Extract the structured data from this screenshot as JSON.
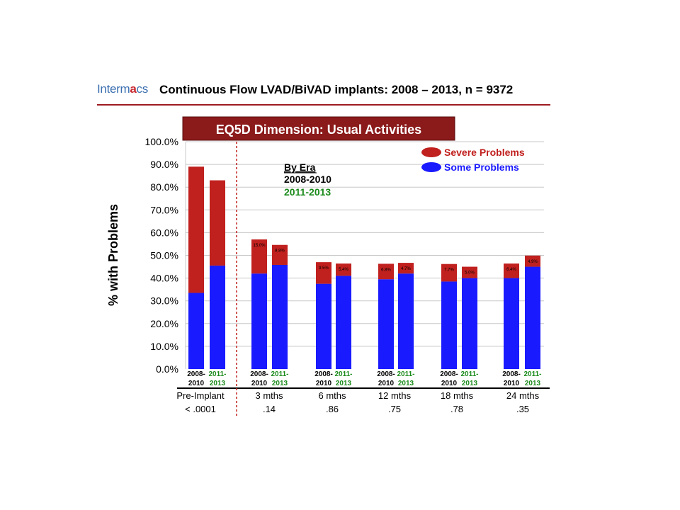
{
  "header": {
    "logo_text": "Intermacs",
    "title": "Continuous Flow LVAD/BiVAD implants:  2008 – 2013, n = 9372"
  },
  "colors": {
    "severe": "#c0201e",
    "some": "#1a1aff",
    "era2_label": "#1a8a1a",
    "banner_bg": "#8b1a1a",
    "accent_rule": "#9e1b20"
  },
  "chart_data": {
    "type": "bar",
    "stacked": true,
    "title": "EQ5D Dimension: Usual Activities",
    "ylabel": "% with Problems",
    "ylim": [
      0,
      100
    ],
    "yticks": [
      "0.0%",
      "10.0%",
      "20.0%",
      "30.0%",
      "40.0%",
      "50.0%",
      "60.0%",
      "70.0%",
      "80.0%",
      "90.0%",
      "100.0%"
    ],
    "legend_position": "top-right",
    "legend": [
      {
        "name": "Severe Problems",
        "color": "#c0201e"
      },
      {
        "name": "Some Problems",
        "color": "#1a1aff"
      }
    ],
    "era_note": {
      "heading": "By Era",
      "era1": "2008-2010",
      "era2": "2011-2013"
    },
    "groups": [
      {
        "label": "Pre-Implant",
        "p_value": "< .0001",
        "bars": [
          {
            "era_line1": "2008-",
            "era_line2": "2010",
            "era": 1,
            "some": 33.5,
            "severe": 55.5,
            "severe_label": ""
          },
          {
            "era_line1": "2011-",
            "era_line2": "2013",
            "era": 2,
            "some": 45.5,
            "severe": 37.5,
            "severe_label": ""
          }
        ]
      },
      {
        "label": "3 mths",
        "p_value": ".14",
        "bars": [
          {
            "era_line1": "2008-",
            "era_line2": "2010",
            "era": 1,
            "some": 42.0,
            "severe": 15.0,
            "severe_label": "15.0%"
          },
          {
            "era_line1": "2011-",
            "era_line2": "2013",
            "era": 2,
            "some": 45.8,
            "severe": 8.8,
            "severe_label": "8.8%"
          }
        ]
      },
      {
        "label": "6 mths",
        "p_value": ".86",
        "bars": [
          {
            "era_line1": "2008-",
            "era_line2": "2010",
            "era": 1,
            "some": 37.5,
            "severe": 9.5,
            "severe_label": "9.5%"
          },
          {
            "era_line1": "2011-",
            "era_line2": "2013",
            "era": 2,
            "some": 41.0,
            "severe": 5.4,
            "severe_label": "5.4%"
          }
        ]
      },
      {
        "label": "12 mths",
        "p_value": ".75",
        "bars": [
          {
            "era_line1": "2008-",
            "era_line2": "2010",
            "era": 1,
            "some": 39.5,
            "severe": 6.8,
            "severe_label": "6.8%"
          },
          {
            "era_line1": "2011-",
            "era_line2": "2013",
            "era": 2,
            "some": 42.0,
            "severe": 4.7,
            "severe_label": "4.7%"
          }
        ]
      },
      {
        "label": "18 mths",
        "p_value": ".78",
        "bars": [
          {
            "era_line1": "2008-",
            "era_line2": "2010",
            "era": 1,
            "some": 38.5,
            "severe": 7.7,
            "severe_label": "7.7%"
          },
          {
            "era_line1": "2011-",
            "era_line2": "2013",
            "era": 2,
            "some": 40.0,
            "severe": 5.0,
            "severe_label": "5.0%"
          }
        ]
      },
      {
        "label": "24 mths",
        "p_value": ".35",
        "bars": [
          {
            "era_line1": "2008-",
            "era_line2": "2010",
            "era": 1,
            "some": 40.0,
            "severe": 6.4,
            "severe_label": "6.4%"
          },
          {
            "era_line1": "2011-",
            "era_line2": "2013",
            "era": 2,
            "some": 45.0,
            "severe": 4.9,
            "severe_label": "4.9%"
          }
        ]
      }
    ]
  }
}
